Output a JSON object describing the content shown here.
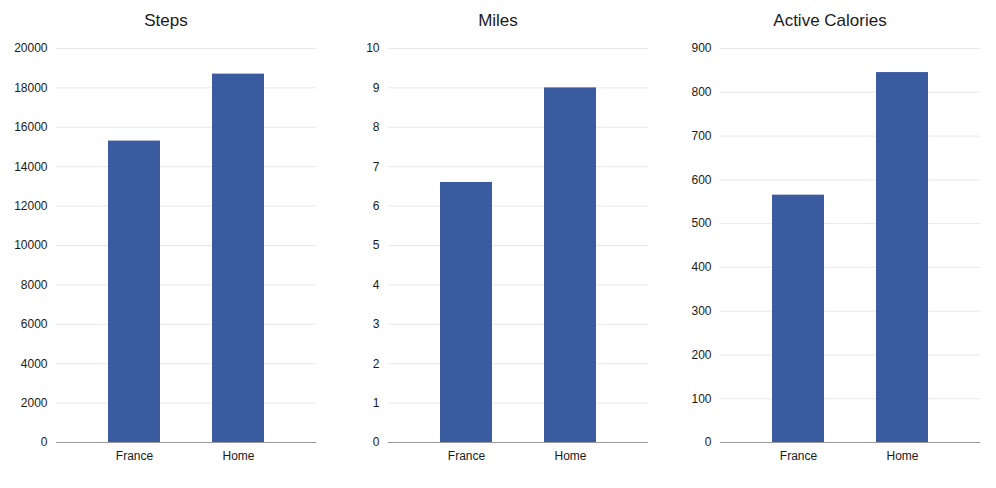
{
  "chart_data": [
    {
      "type": "bar",
      "title": "Steps",
      "categories": [
        "France",
        "Home"
      ],
      "values": [
        15300,
        18700
      ],
      "color": "#3A5BA0",
      "ylim": [
        0,
        20000
      ],
      "yticks": [
        0,
        2000,
        4000,
        6000,
        8000,
        10000,
        12000,
        14000,
        16000,
        18000,
        20000
      ],
      "grid": true
    },
    {
      "type": "bar",
      "title": "Miles",
      "categories": [
        "France",
        "Home"
      ],
      "values": [
        6.6,
        9.0
      ],
      "color": "#3A5BA0",
      "ylim": [
        0,
        10
      ],
      "yticks": [
        0,
        1,
        2,
        3,
        4,
        5,
        6,
        7,
        8,
        9,
        10
      ],
      "grid": true
    },
    {
      "type": "bar",
      "title": "Active Calories",
      "categories": [
        "France",
        "Home"
      ],
      "values": [
        565,
        845
      ],
      "color": "#3A5BA0",
      "ylim": [
        0,
        900
      ],
      "yticks": [
        0,
        100,
        200,
        300,
        400,
        500,
        600,
        700,
        800,
        900
      ],
      "grid": true
    }
  ]
}
